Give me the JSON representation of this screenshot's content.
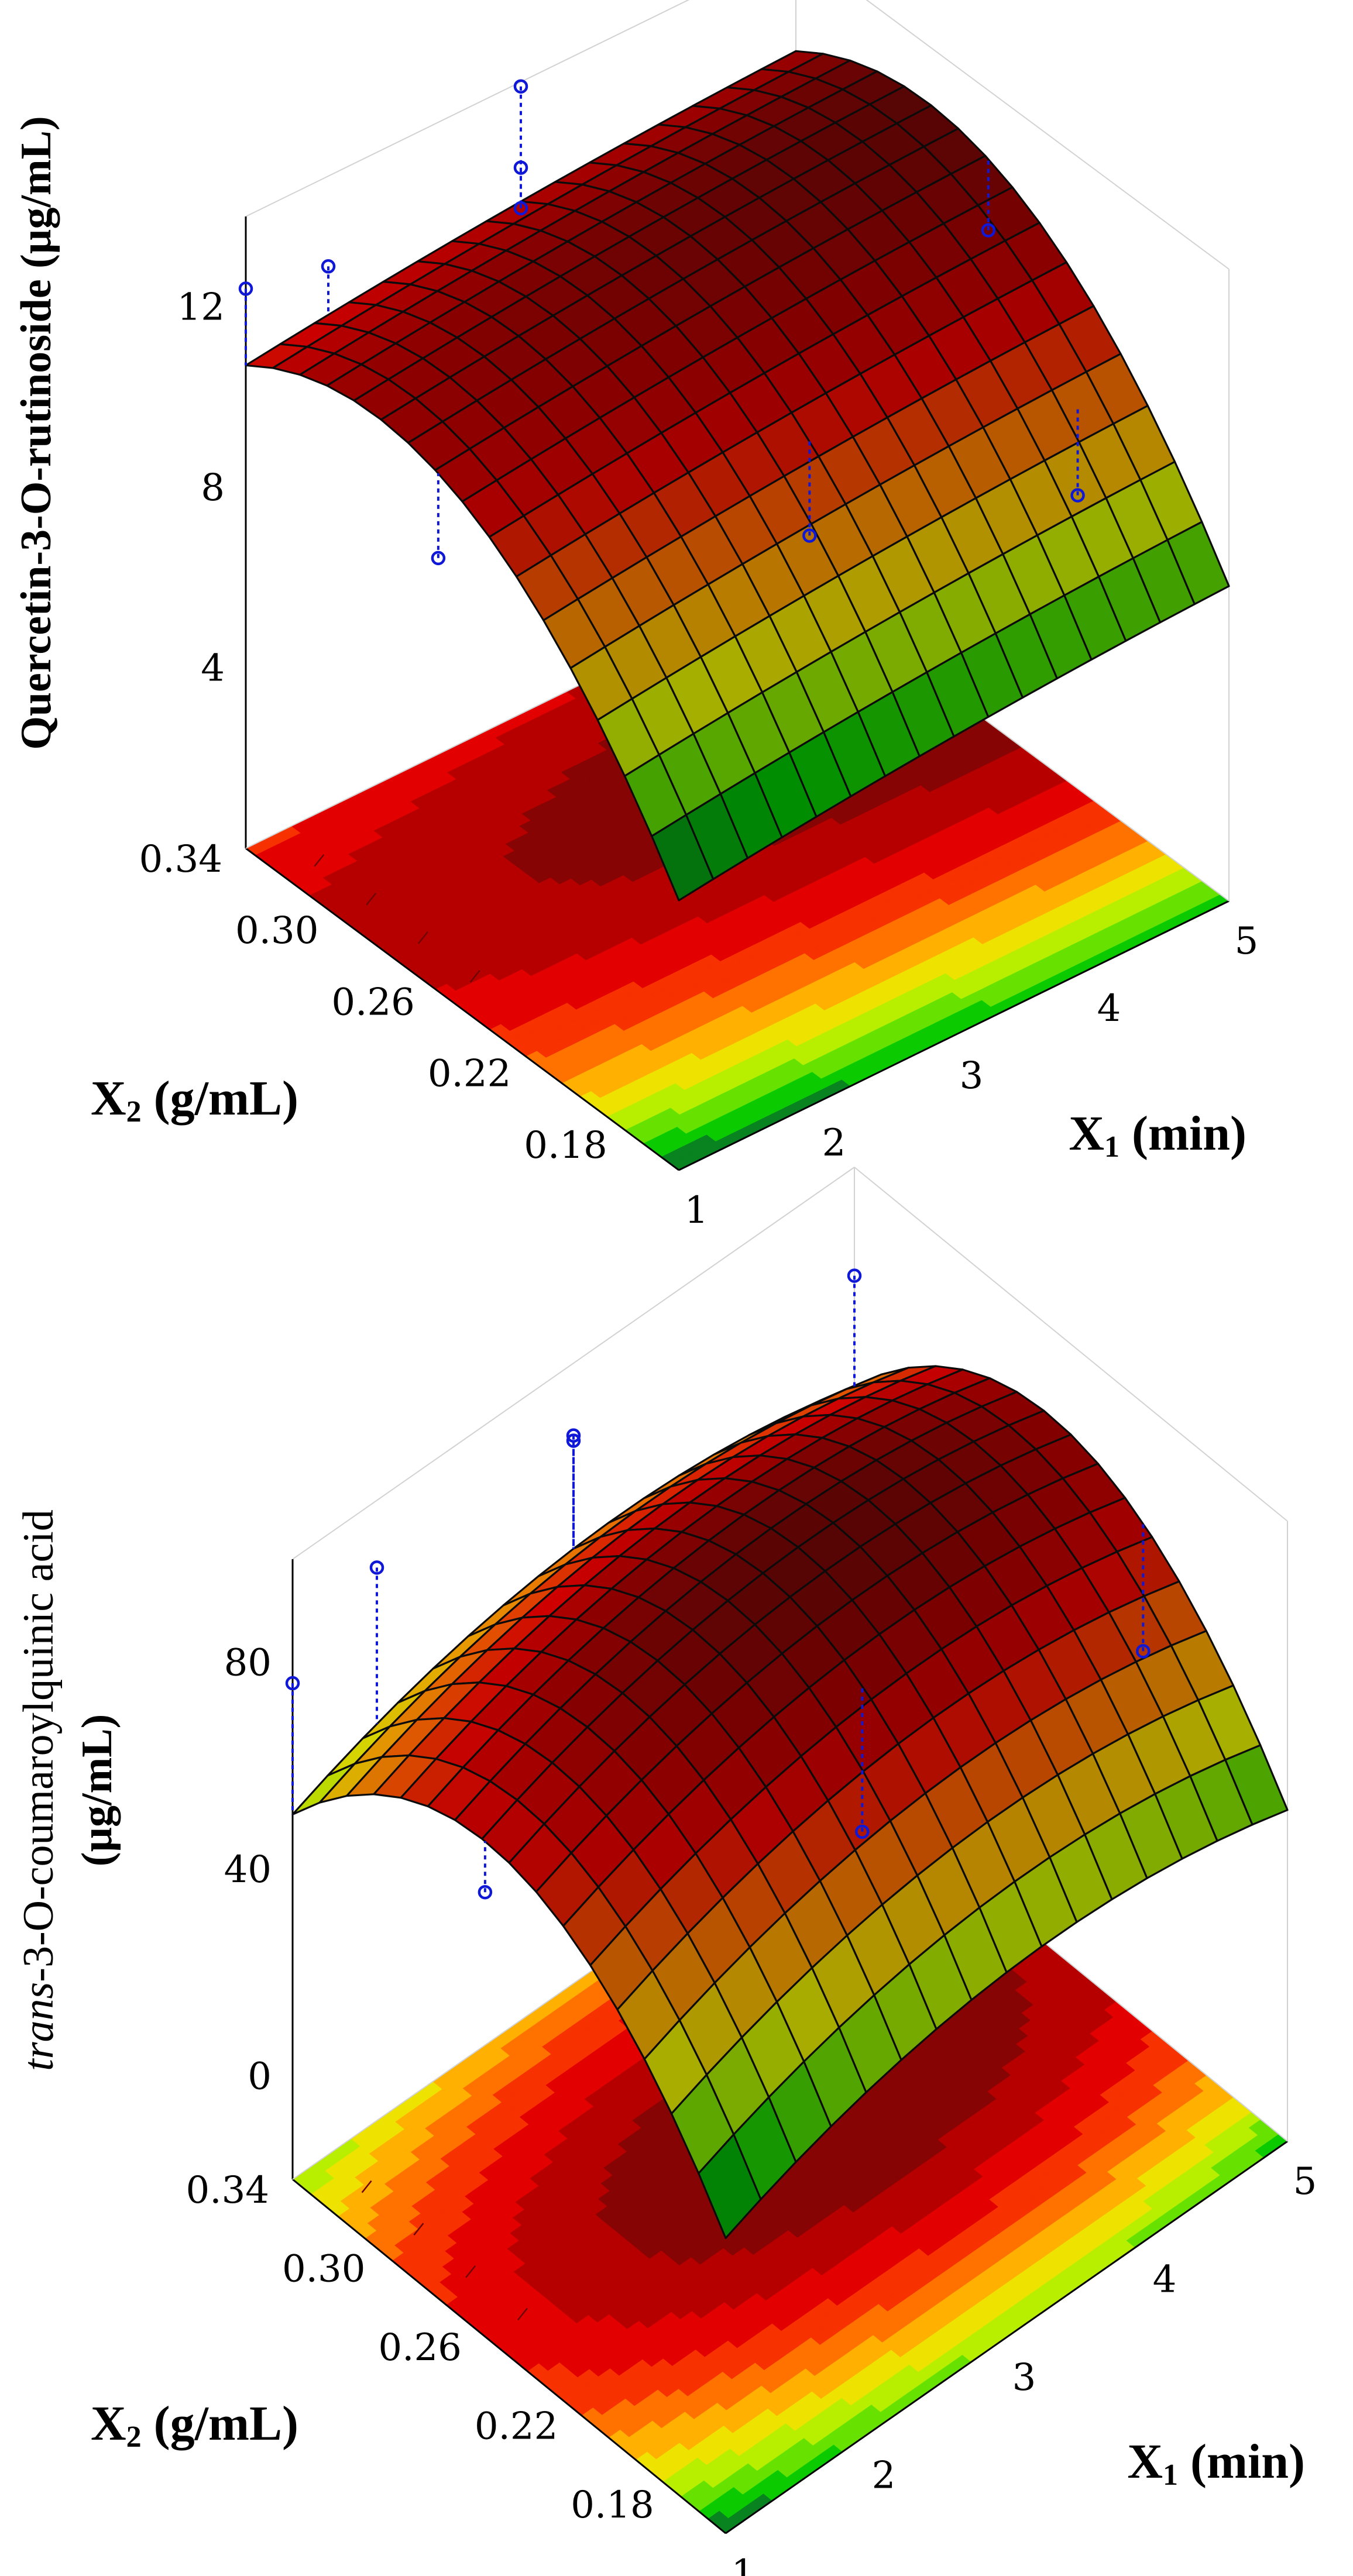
{
  "figure": {
    "caption": ""
  },
  "chart_data": [
    {
      "type": "surface",
      "title": "",
      "xlabel": "X1 (min)",
      "ylabel": "X2 (g/mL)",
      "zlabel": "Quercetin-3-O-rutinoside (µg/mL)",
      "zlabel_parts": {
        "italic": "",
        "main": "Quercetin-3-O-rutinoside (µg/mL)",
        "unit": ""
      },
      "xlabel_parts": {
        "var": "X",
        "sub": "1",
        "unit": " (min)"
      },
      "ylabel_parts": {
        "var": "X",
        "sub": "2",
        "unit": " (g/mL)"
      },
      "x_range": [
        1,
        5
      ],
      "y_range": [
        0.16,
        0.34
      ],
      "z_range": [
        0,
        14
      ],
      "x_ticks": [
        "1",
        "2",
        "3",
        "4",
        "5"
      ],
      "y_ticks": [
        "0.18",
        "0.22",
        "0.26",
        "0.30",
        "0.34"
      ],
      "z_ticks": [
        "4",
        "8",
        "12"
      ],
      "color_scale": [
        "#0e5a32",
        "#00c800",
        "#7fe800",
        "#e8f400",
        "#ffb000",
        "#ff5a00",
        "#ee0000",
        "#b00000",
        "#6e0606"
      ],
      "model": {
        "b0": 11.9,
        "b1": 0.5,
        "b2": 2.1,
        "b11": -0.15,
        "b22": -2.3,
        "b12": 0.0
      },
      "points": [
        {
          "x": 1,
          "y": 0.34,
          "z": 12.4
        },
        {
          "x": 1.6,
          "y": 0.34,
          "z": 12.0
        },
        {
          "x": 3,
          "y": 0.34,
          "z": 13.9
        },
        {
          "x": 3,
          "y": 0.34,
          "z": 12.1
        },
        {
          "x": 3,
          "y": 0.34,
          "z": 11.2
        },
        {
          "x": 1,
          "y": 0.26,
          "z": 9.6
        },
        {
          "x": 5,
          "y": 0.26,
          "z": 10.9
        },
        {
          "x": 3,
          "y": 0.22,
          "z": 8.7
        },
        {
          "x": 4.6,
          "y": 0.2,
          "z": 8.0
        }
      ]
    },
    {
      "type": "surface",
      "title": "",
      "xlabel": "X1 (min)",
      "ylabel": "X2 (g/mL)",
      "zlabel": "trans-3-O-coumaroylquinic acid (µg/mL)",
      "zlabel_parts": {
        "italic": "trans",
        "main": "-3-O-coumaroylquinic acid",
        "unit": "(µg/mL)"
      },
      "xlabel_parts": {
        "var": "X",
        "sub": "1",
        "unit": " (min)"
      },
      "ylabel_parts": {
        "var": "X",
        "sub": "2",
        "unit": " (g/mL)"
      },
      "x_range": [
        1,
        5
      ],
      "y_range": [
        0.16,
        0.34
      ],
      "z_range": [
        -20,
        100
      ],
      "x_ticks": [
        "1",
        "2",
        "3",
        "4",
        "5"
      ],
      "y_ticks": [
        "0.18",
        "0.22",
        "0.26",
        "0.30",
        "0.34"
      ],
      "z_ticks": [
        "0",
        "40",
        "80"
      ],
      "color_scale": [
        "#0e5a32",
        "#00c800",
        "#7fe800",
        "#e8f400",
        "#ffb000",
        "#ff5a00",
        "#ee0000",
        "#b00000",
        "#6e0606"
      ],
      "model": {
        "b0": 89,
        "b1": 3.5,
        "b2": 6.0,
        "b11": -10.0,
        "b22": -25.0,
        "b12": 0.0
      },
      "points": [
        {
          "x": 1,
          "y": 0.34,
          "z": 76
        },
        {
          "x": 1.6,
          "y": 0.34,
          "z": 87
        },
        {
          "x": 3,
          "y": 0.34,
          "z": 86
        },
        {
          "x": 3,
          "y": 0.34,
          "z": 85
        },
        {
          "x": 5,
          "y": 0.34,
          "z": 79
        },
        {
          "x": 1,
          "y": 0.26,
          "z": 66
        },
        {
          "x": 3,
          "y": 0.22,
          "z": 55
        },
        {
          "x": 5,
          "y": 0.22,
          "z": 52
        }
      ]
    }
  ]
}
